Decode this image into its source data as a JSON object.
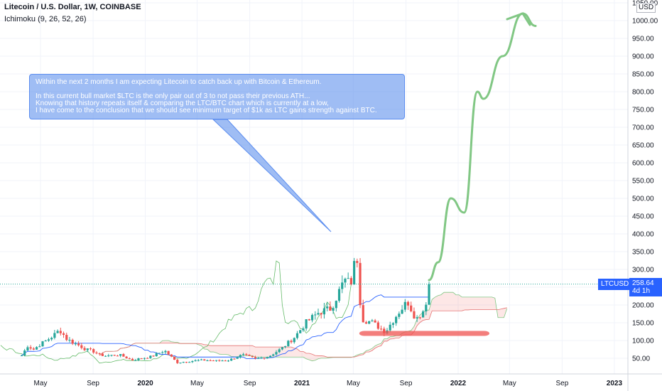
{
  "header": {
    "title": "Litecoin / U.S. Dollar, 1W, COINBASE",
    "indicator": "Ichimoku (9, 26, 52, 26)"
  },
  "annotation": {
    "lines": [
      "Within the next 2 months I am expecting Litecoin to catch back up with Bitcoin & Ethereum.",
      "",
      "In this current bull market $LTC is the only pair out of 3 to not pass their previous ATH...",
      "Knowing that history repeats itself & comparing the LTC/BTC chart which is currently at a low,",
      "I have come to the conclusion that we should see minimum target of $1k as LTC gains strength against BTC."
    ]
  },
  "price_axis": {
    "currency": "USD",
    "ticks": [
      "1050.00",
      "1000.00",
      "950.00",
      "900.00",
      "850.00",
      "800.00",
      "750.00",
      "700.00",
      "650.00",
      "600.00",
      "550.00",
      "500.00",
      "450.00",
      "400.00",
      "350.00",
      "300.00",
      "250.00",
      "200.00",
      "150.00",
      "100.00",
      "50.00"
    ]
  },
  "current_price": {
    "ticker": "LTCUSD",
    "price": "258.64",
    "countdown": "4d 1h"
  },
  "chart_data": {
    "type": "candlestick",
    "symbol": "LTCUSD",
    "interval": "1W",
    "exchange": "COINBASE",
    "ylim": [
      0,
      1050
    ],
    "x_tick_labels": [
      "May",
      "Sep",
      "2020",
      "May",
      "Sep",
      "2021",
      "May",
      "Sep",
      "2022",
      "May",
      "Sep",
      "2023"
    ],
    "x_tick_dates": [
      "2019-05-01",
      "2019-09-01",
      "2020-01-01",
      "2020-05-01",
      "2020-09-01",
      "2021-01-01",
      "2021-05-01",
      "2021-09-01",
      "2022-01-01",
      "2022-05-01",
      "2022-09-01",
      "2023-01-01"
    ],
    "weekly_close": [
      {
        "date": "2019-03-18",
        "value": 58
      },
      {
        "date": "2019-04-01",
        "value": 85
      },
      {
        "date": "2019-04-15",
        "value": 75
      },
      {
        "date": "2019-05-01",
        "value": 90
      },
      {
        "date": "2019-05-15",
        "value": 100
      },
      {
        "date": "2019-06-01",
        "value": 115
      },
      {
        "date": "2019-06-15",
        "value": 130
      },
      {
        "date": "2019-07-01",
        "value": 105
      },
      {
        "date": "2019-07-15",
        "value": 95
      },
      {
        "date": "2019-08-01",
        "value": 85
      },
      {
        "date": "2019-08-15",
        "value": 75
      },
      {
        "date": "2019-09-01",
        "value": 70
      },
      {
        "date": "2019-09-15",
        "value": 60
      },
      {
        "date": "2019-10-01",
        "value": 57
      },
      {
        "date": "2019-11-01",
        "value": 60
      },
      {
        "date": "2019-12-01",
        "value": 45
      },
      {
        "date": "2020-01-15",
        "value": 55
      },
      {
        "date": "2020-02-15",
        "value": 72
      },
      {
        "date": "2020-03-15",
        "value": 38
      },
      {
        "date": "2020-04-15",
        "value": 42
      },
      {
        "date": "2020-05-15",
        "value": 45
      },
      {
        "date": "2020-06-15",
        "value": 43
      },
      {
        "date": "2020-07-15",
        "value": 45
      },
      {
        "date": "2020-08-15",
        "value": 60
      },
      {
        "date": "2020-09-15",
        "value": 48
      },
      {
        "date": "2020-10-15",
        "value": 55
      },
      {
        "date": "2020-11-15",
        "value": 78
      },
      {
        "date": "2020-12-15",
        "value": 110
      },
      {
        "date": "2021-01-10",
        "value": 150
      },
      {
        "date": "2021-02-10",
        "value": 180
      },
      {
        "date": "2021-03-10",
        "value": 190
      },
      {
        "date": "2021-04-10",
        "value": 270
      },
      {
        "date": "2021-04-25",
        "value": 260
      },
      {
        "date": "2021-05-09",
        "value": 350
      },
      {
        "date": "2021-05-16",
        "value": 220
      },
      {
        "date": "2021-05-23",
        "value": 160
      },
      {
        "date": "2021-06-15",
        "value": 150
      },
      {
        "date": "2021-07-15",
        "value": 125
      },
      {
        "date": "2021-08-15",
        "value": 180
      },
      {
        "date": "2021-09-05",
        "value": 210
      },
      {
        "date": "2021-09-25",
        "value": 160
      },
      {
        "date": "2021-10-15",
        "value": 190
      },
      {
        "date": "2021-10-25",
        "value": 258.64
      }
    ],
    "projection_path": [
      {
        "date": "2021-10-25",
        "value": 270
      },
      {
        "date": "2021-11-15",
        "value": 320
      },
      {
        "date": "2021-12-15",
        "value": 500
      },
      {
        "date": "2022-01-15",
        "value": 460
      },
      {
        "date": "2022-02-15",
        "value": 800
      },
      {
        "date": "2022-03-01",
        "value": 780
      },
      {
        "date": "2022-04-15",
        "value": 900
      },
      {
        "date": "2022-06-01",
        "value": 1020
      },
      {
        "date": "2022-07-01",
        "value": 985
      }
    ],
    "support_zone": {
      "from": "2021-05-15",
      "to": "2022-03-15",
      "low": 113,
      "high": 127
    },
    "ichimoku": {
      "conversion": 9,
      "base": 26,
      "span_b": 52,
      "displacement": 26
    }
  },
  "colors": {
    "up": "#26a69a",
    "down": "#ef5350",
    "projection": "#81c784",
    "support": "#ef5350",
    "accent": "#2962ff"
  }
}
